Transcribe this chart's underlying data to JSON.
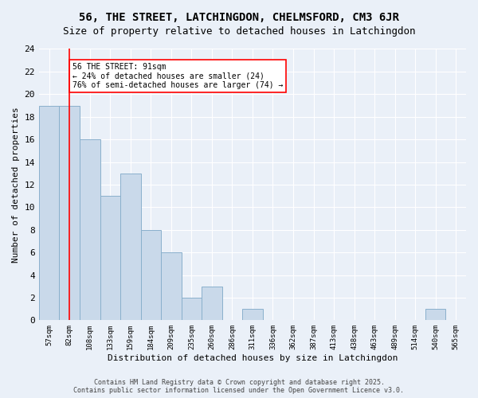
{
  "title1": "56, THE STREET, LATCHINGDON, CHELMSFORD, CM3 6JR",
  "title2": "Size of property relative to detached houses in Latchingdon",
  "xlabel": "Distribution of detached houses by size in Latchingdon",
  "ylabel": "Number of detached properties",
  "bins": [
    "57sqm",
    "82sqm",
    "108sqm",
    "133sqm",
    "159sqm",
    "184sqm",
    "209sqm",
    "235sqm",
    "260sqm",
    "286sqm",
    "311sqm",
    "336sqm",
    "362sqm",
    "387sqm",
    "413sqm",
    "438sqm",
    "463sqm",
    "489sqm",
    "514sqm",
    "540sqm",
    "565sqm"
  ],
  "values": [
    19,
    19,
    16,
    11,
    13,
    8,
    6,
    2,
    3,
    0,
    1,
    0,
    0,
    0,
    0,
    0,
    0,
    0,
    0,
    1,
    0
  ],
  "bar_color": "#c9d9ea",
  "bar_edge_color": "#8ab0cc",
  "red_line_x": 1,
  "annotation_text": "56 THE STREET: 91sqm\n← 24% of detached houses are smaller (24)\n76% of semi-detached houses are larger (74) →",
  "annotation_box_color": "white",
  "annotation_box_edge": "red",
  "ylim": [
    0,
    24
  ],
  "yticks": [
    0,
    2,
    4,
    6,
    8,
    10,
    12,
    14,
    16,
    18,
    20,
    22,
    24
  ],
  "bg_color": "#eaf0f8",
  "grid_color": "white",
  "footer": "Contains HM Land Registry data © Crown copyright and database right 2025.\nContains public sector information licensed under the Open Government Licence v3.0."
}
